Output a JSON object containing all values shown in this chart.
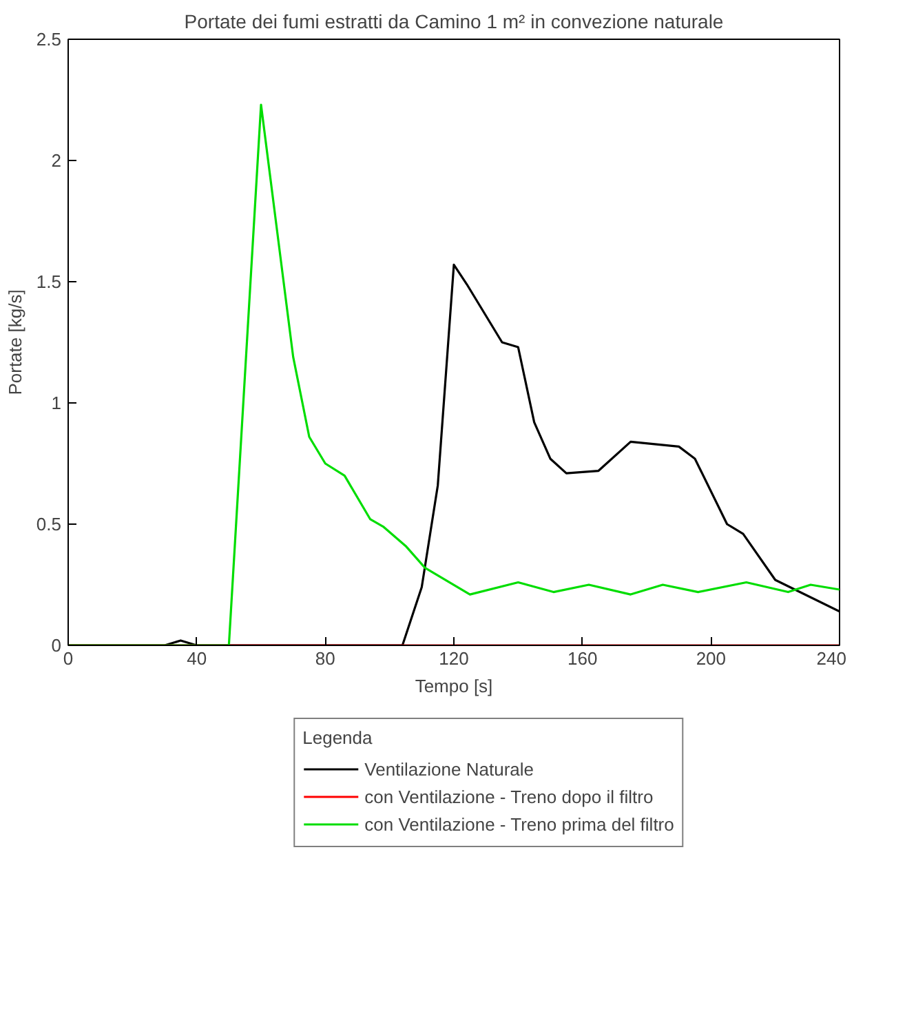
{
  "chart_data": {
    "type": "line",
    "title": "Portate dei fumi estratti da Camino 1 m² in convezione naturale",
    "xlabel": "Tempo [s]",
    "ylabel": "Portate [kg/s]",
    "legend_title": "Legenda",
    "legend": "bottom",
    "grid": false,
    "xlim": [
      0,
      240
    ],
    "xticks": [
      0,
      40,
      80,
      120,
      160,
      200,
      240
    ],
    "ylim": [
      0,
      2.5
    ],
    "yticks": [
      0,
      0.5,
      1,
      1.5,
      2,
      2.5
    ],
    "series": [
      {
        "name": "Ventilazione Naturale",
        "color": "#000000",
        "x": [
          0,
          30,
          35,
          40,
          104,
          110,
          115,
          120,
          124,
          135,
          140,
          145,
          150,
          155,
          165,
          175,
          190,
          195,
          205,
          210,
          220,
          240
        ],
        "values": [
          0,
          0,
          0.02,
          0,
          0,
          0.24,
          0.66,
          1.57,
          1.49,
          1.25,
          1.23,
          0.92,
          0.77,
          0.71,
          0.72,
          0.84,
          0.82,
          0.77,
          0.5,
          0.46,
          0.27,
          0.14
        ]
      },
      {
        "name": "con Ventilazione - Treno dopo il filtro",
        "color": "#ff0000",
        "x": [
          0,
          240
        ],
        "values": [
          0,
          0
        ]
      },
      {
        "name": "con Ventilazione - Treno prima del filtro",
        "color": "#00dd00",
        "x": [
          0,
          50,
          60,
          65,
          70,
          75,
          80,
          86,
          94,
          98,
          105,
          111,
          125,
          140,
          151,
          162,
          175,
          185,
          196,
          211,
          224,
          231,
          240
        ],
        "values": [
          0,
          0,
          2.23,
          1.71,
          1.19,
          0.86,
          0.75,
          0.7,
          0.52,
          0.49,
          0.41,
          0.32,
          0.21,
          0.26,
          0.22,
          0.25,
          0.21,
          0.25,
          0.22,
          0.26,
          0.22,
          0.25,
          0.23
        ]
      }
    ]
  }
}
